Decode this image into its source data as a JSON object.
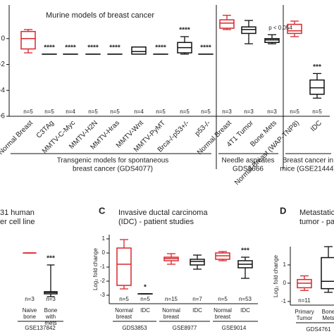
{
  "chart_data": [
    {
      "type": "box",
      "title": "Murine models of breast cancer",
      "categories": [
        "Normal Breast",
        "C3TAg",
        "MMTV-C-Myc",
        "MMTV-H2N",
        "MMTV-Hras",
        "MMTV-Wnt",
        "MMTV-PyMT",
        "Brca-/-p53+/-",
        "p53-/-",
        "Normal Breast",
        "4T1 Tumor",
        "Bone Mets",
        "Normal Breast (WAP-TNP8)",
        "IDC"
      ],
      "stats": [
        [
          -1.1,
          -0.8,
          0,
          0.55,
          0.7
        ],
        [
          -1.2,
          -1.2,
          -1.2,
          -1.2,
          -1.2
        ],
        [
          -1.2,
          -1.2,
          -1.2,
          -1.2,
          -1.2
        ],
        [
          -1.2,
          -1.2,
          -1.2,
          -1.2,
          -1.2
        ],
        [
          -1.2,
          -1.2,
          -1.2,
          -1.2,
          -1.2
        ],
        [
          -1.2,
          -1.2,
          -1.0,
          -0.65,
          -0.65
        ],
        [
          -1.2,
          -1.2,
          -1.2,
          -1.2,
          -1.2
        ],
        [
          -1.2,
          -1.1,
          -0.7,
          -0.3,
          0.15
        ],
        [
          -1.2,
          -1.2,
          -1.2,
          -1.2,
          -1.2
        ],
        [
          0.7,
          0.8,
          1.2,
          1.45,
          1.8
        ],
        [
          -0.4,
          0.4,
          0.7,
          0.9,
          1.4
        ],
        [
          -0.4,
          -0.3,
          -0.1,
          0,
          0.3
        ],
        [
          0.15,
          0.4,
          0.6,
          1.1,
          1.35
        ],
        [
          -4.6,
          -4.3,
          -3.8,
          -3.2,
          -2.7
        ]
      ],
      "colors": [
        "#d9262c",
        "#111111",
        "#111111",
        "#111111",
        "#111111",
        "#111111",
        "#111111",
        "#111111",
        "#111111",
        "#d9262c",
        "#111111",
        "#111111",
        "#d9262c",
        "#111111"
      ],
      "n_labels": [
        "n=5",
        "n=5",
        "n=4",
        "n=5",
        "n=5",
        "n=4",
        "n=5",
        "n=5",
        "n=5",
        "n=3",
        "n=3",
        "n=3",
        "n=5",
        "n=5"
      ],
      "annotations": [
        null,
        "****",
        "****",
        "****",
        "****",
        null,
        "****",
        "****",
        "****",
        null,
        null,
        null,
        null,
        "***"
      ],
      "note": "p < 0.054",
      "group_labels": [
        [
          "Transgenic models for spontaneous",
          "breast cancer (GDS4077)"
        ],
        [
          "Needle aspirates",
          "GDS5666"
        ],
        [
          "Breast cancer in",
          "mice (GSE21444)"
        ]
      ],
      "ylim": [
        -6,
        2.6
      ],
      "yticks": [
        -6,
        -4,
        -2,
        0
      ]
    },
    {
      "type": "box",
      "title_lines": [
        "31 human",
        "er cell line"
      ],
      "categories": [
        "Naive bone",
        "Bone with mets"
      ],
      "stats": [
        [
          0,
          0,
          0,
          0,
          0
        ],
        [
          -3.1,
          -2.9,
          -2.8,
          -2.75,
          -0.85
        ]
      ],
      "colors": [
        "#d9262c",
        "#111111"
      ],
      "n_labels": [
        "n=3",
        "n=3"
      ],
      "annotations": [
        null,
        "***"
      ],
      "group_labels": [
        [
          "GSE137842"
        ]
      ],
      "ylim": [
        -3.6,
        1.3
      ]
    },
    {
      "type": "box",
      "letter": "C",
      "title_lines": [
        "Invasive ductal carcinoma",
        "(IDC) - patient studies"
      ],
      "y_label": "Log₂ fold change",
      "categories": [
        "Normal breast",
        "IDC",
        "Normal breast",
        "IDC",
        "Normal breast",
        "IDC"
      ],
      "stats": [
        [
          -2.55,
          -2.3,
          -0.8,
          0.35,
          0.95
        ],
        [
          -2.9,
          -2.9,
          -2.9,
          -2.9,
          -2.9
        ],
        [
          -0.8,
          -0.55,
          -0.4,
          -0.3,
          -0.05
        ],
        [
          -1.15,
          -0.85,
          -0.6,
          -0.45,
          -0.15
        ],
        [
          -0.55,
          -0.45,
          -0.2,
          0,
          0.1
        ],
        [
          -1.8,
          -1.05,
          -0.8,
          -0.55,
          -0.3
        ]
      ],
      "colors": [
        "#d9262c",
        "#111111",
        "#d9262c",
        "#111111",
        "#d9262c",
        "#111111"
      ],
      "n_labels": [
        "n=5",
        "n=5",
        "n=15",
        "n=7",
        "n=5",
        "n=53"
      ],
      "annotations": [
        null,
        "*",
        null,
        null,
        null,
        "***"
      ],
      "group_labels": [
        [
          "GDS3853"
        ],
        [
          "GSE8977"
        ],
        [
          "GSE9014"
        ]
      ],
      "ylim": [
        -3.6,
        1.3
      ],
      "yticks": [
        -3,
        -2,
        -1,
        0,
        1
      ]
    },
    {
      "type": "box",
      "letter": "D",
      "title_lines": [
        "Metastatic vs m",
        "tumor - patient"
      ],
      "y_label": "Log₂ fold change",
      "categories": [
        "Primary Tumor",
        "Bone Mets"
      ],
      "stats": [
        [
          -0.4,
          -0.25,
          0,
          0.2,
          0.4
        ],
        [
          -0.5,
          -0.3,
          0.1,
          1.4,
          2
        ]
      ],
      "colors": [
        "#d9262c",
        "#111111"
      ],
      "n_labels": [
        "n=11",
        null
      ],
      "annotations": [
        null,
        null
      ],
      "group_labels": [
        [
          "GDS4761"
        ]
      ],
      "ylim": [
        -1.2,
        2
      ],
      "yticks": [
        -1,
        0,
        1
      ]
    }
  ]
}
